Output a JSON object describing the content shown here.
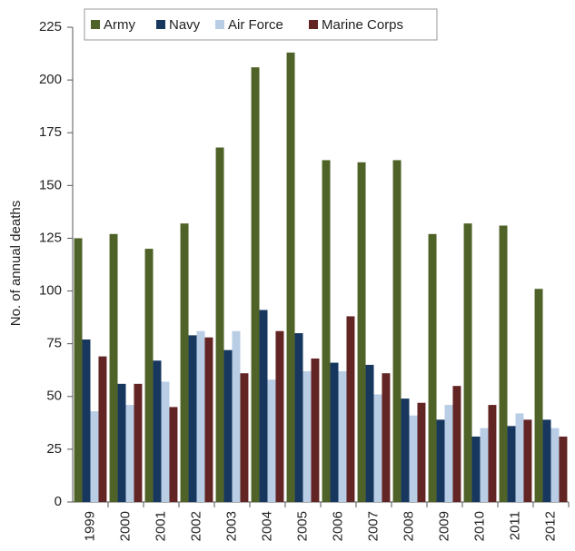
{
  "chart_data": {
    "type": "bar",
    "y_label": "No. of annual deaths",
    "categories": [
      "1999",
      "2000",
      "2001",
      "2002",
      "2003",
      "2004",
      "2005",
      "2006",
      "2007",
      "2008",
      "2009",
      "2010",
      "2011",
      "2012"
    ],
    "series": [
      {
        "name": "Army",
        "color": "#4f6228",
        "values": [
          125,
          127,
          120,
          132,
          168,
          206,
          213,
          162,
          161,
          162,
          127,
          132,
          131,
          101
        ]
      },
      {
        "name": "Navy",
        "color": "#17375e",
        "values": [
          77,
          56,
          67,
          79,
          72,
          91,
          80,
          66,
          65,
          49,
          39,
          31,
          36,
          39
        ]
      },
      {
        "name": "Air Force",
        "color": "#b9cde5",
        "values": [
          43,
          46,
          57,
          81,
          81,
          58,
          62,
          62,
          51,
          41,
          46,
          35,
          42,
          35
        ]
      },
      {
        "name": "Marine Corps",
        "color": "#632523",
        "values": [
          69,
          56,
          45,
          78,
          61,
          81,
          68,
          88,
          61,
          47,
          55,
          46,
          39,
          31
        ]
      }
    ],
    "ylim": [
      0,
      225
    ],
    "yticks": [
      0,
      25,
      50,
      75,
      100,
      125,
      150,
      175,
      200,
      225
    ],
    "grid": false,
    "legend": "top"
  }
}
